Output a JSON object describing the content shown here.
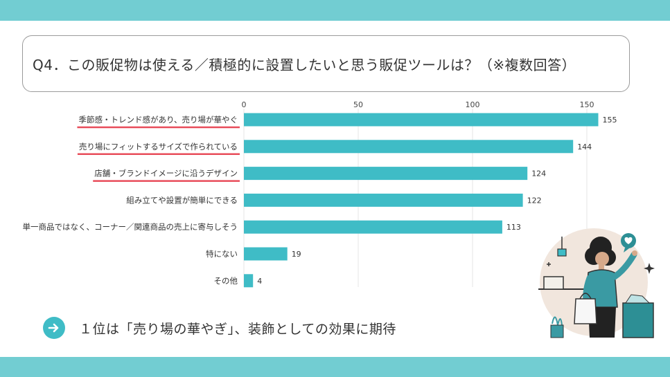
{
  "slide": {
    "title": "Q4．この販促物は使える／積極的に設置したいと思う販促ツールは？（※複数回答）",
    "takeaway": "１位は「売り場の華やぎ」、装飾としての効果に期待",
    "colors": {
      "band": "#72cdd2",
      "bar": "#3fbcc6",
      "highlight_underline": "#e84c5a",
      "arrow_circle": "#3fbcc6"
    },
    "icons": {
      "takeaway_icon": "arrow-right-icon",
      "illustration": "woman-shopping-illustration"
    }
  },
  "chart_data": {
    "type": "bar",
    "orientation": "horizontal",
    "categories": [
      "季節感・トレンド感があり、売り場が華やぐ",
      "売り場にフィットするサイズで作られている",
      "店舗・ブランドイメージに沿うデザイン",
      "組み立てや設置が簡単にできる",
      "単一商品ではなく、コーナー／関連商品の売上に寄与しそう",
      "特にない",
      "その他"
    ],
    "values": [
      155,
      144,
      124,
      122,
      113,
      19,
      4
    ],
    "highlighted_categories": [
      0,
      1,
      2
    ],
    "xlim": [
      0,
      160
    ],
    "xticks": [
      0,
      50,
      100,
      150
    ],
    "axis_position": "top",
    "grid": true,
    "data_labels": true
  }
}
